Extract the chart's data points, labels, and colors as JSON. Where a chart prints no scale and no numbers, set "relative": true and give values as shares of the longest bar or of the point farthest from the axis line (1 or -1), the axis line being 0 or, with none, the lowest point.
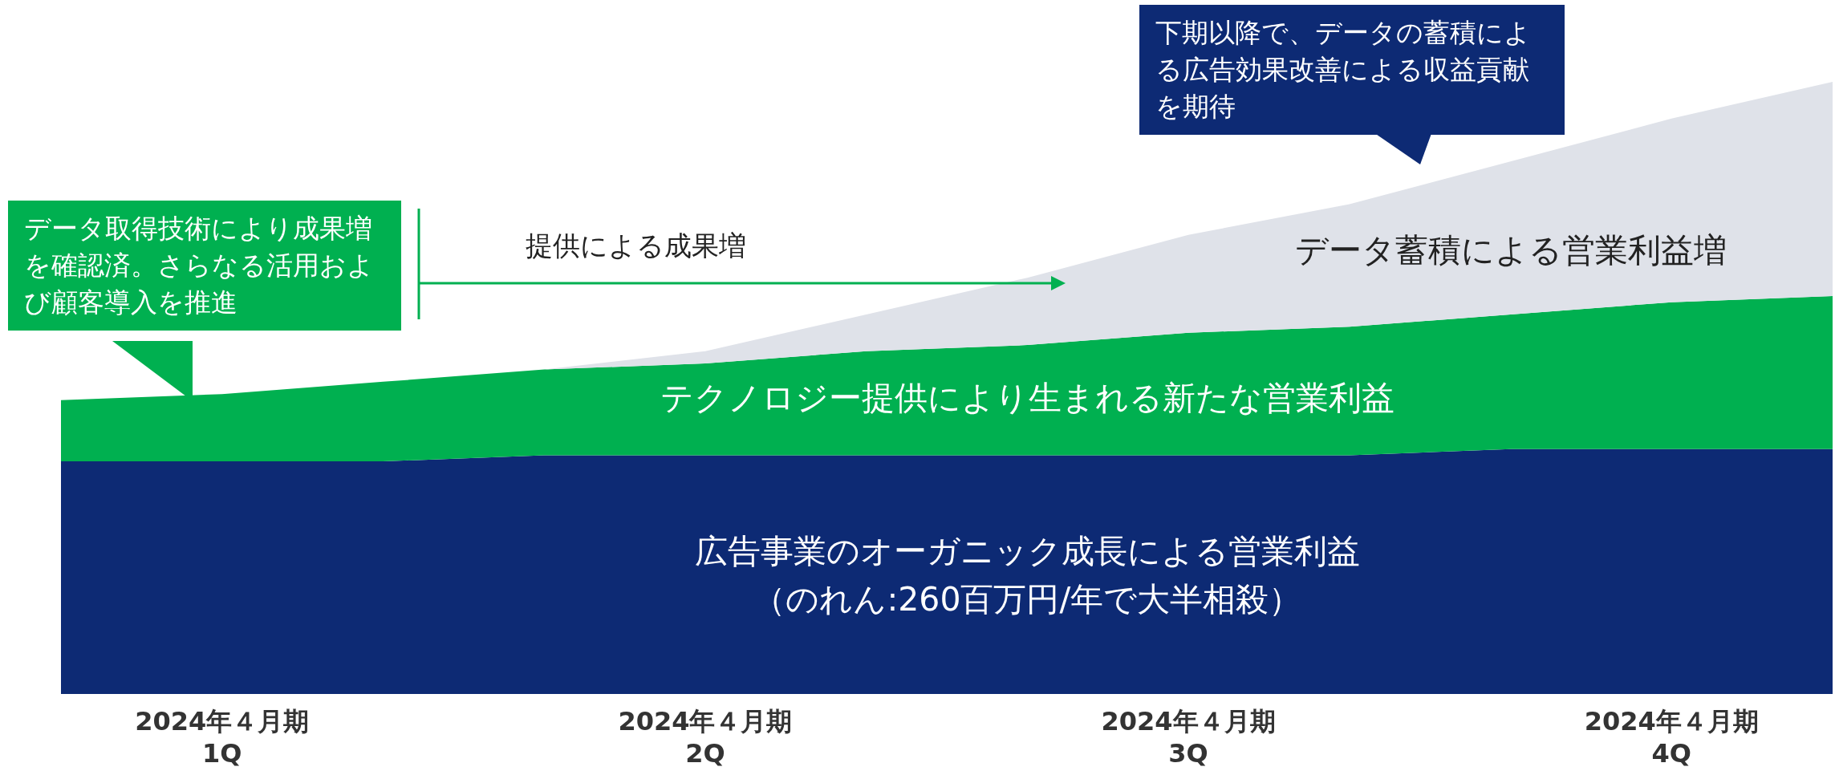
{
  "chart_data": {
    "type": "area",
    "relative": true,
    "stacked": true,
    "legend": false,
    "tick_labels": "x",
    "categories": [
      null,
      "2024年４月期\n1Q",
      null,
      null,
      "2024年４月期\n2Q",
      null,
      null,
      "2024年４月期\n3Q",
      null,
      null,
      "2024年４月期\n4Q",
      null
    ],
    "series": [
      {
        "name": "広告事業のオーガニック成長による営業利益",
        "color": "#0d2a74",
        "values": [
          0.38,
          0.38,
          0.38,
          0.39,
          0.39,
          0.39,
          0.39,
          0.39,
          0.39,
          0.4,
          0.4,
          0.4
        ]
      },
      {
        "name": "テクノロジー提供により生まれる新たな営業利益",
        "color": "#00b050",
        "values": [
          0.1,
          0.11,
          0.13,
          0.14,
          0.15,
          0.17,
          0.18,
          0.2,
          0.21,
          0.22,
          0.24,
          0.25
        ]
      },
      {
        "name": "データ蓄積による営業利益増",
        "color": "#dfe2e9",
        "values": [
          0,
          0,
          0,
          0,
          0.02,
          0.06,
          0.11,
          0.16,
          0.2,
          0.25,
          0.3,
          0.35
        ]
      }
    ],
    "annotations": [
      "データ取得技術により成果増を確認済。さらなる活用および顧客導入を推進",
      "下期以降で、データの蓄積による広告効果改善による収益貢献を期待",
      "提供による成果増",
      "（のれん:260百万円/年で大半相殺）"
    ]
  }
}
